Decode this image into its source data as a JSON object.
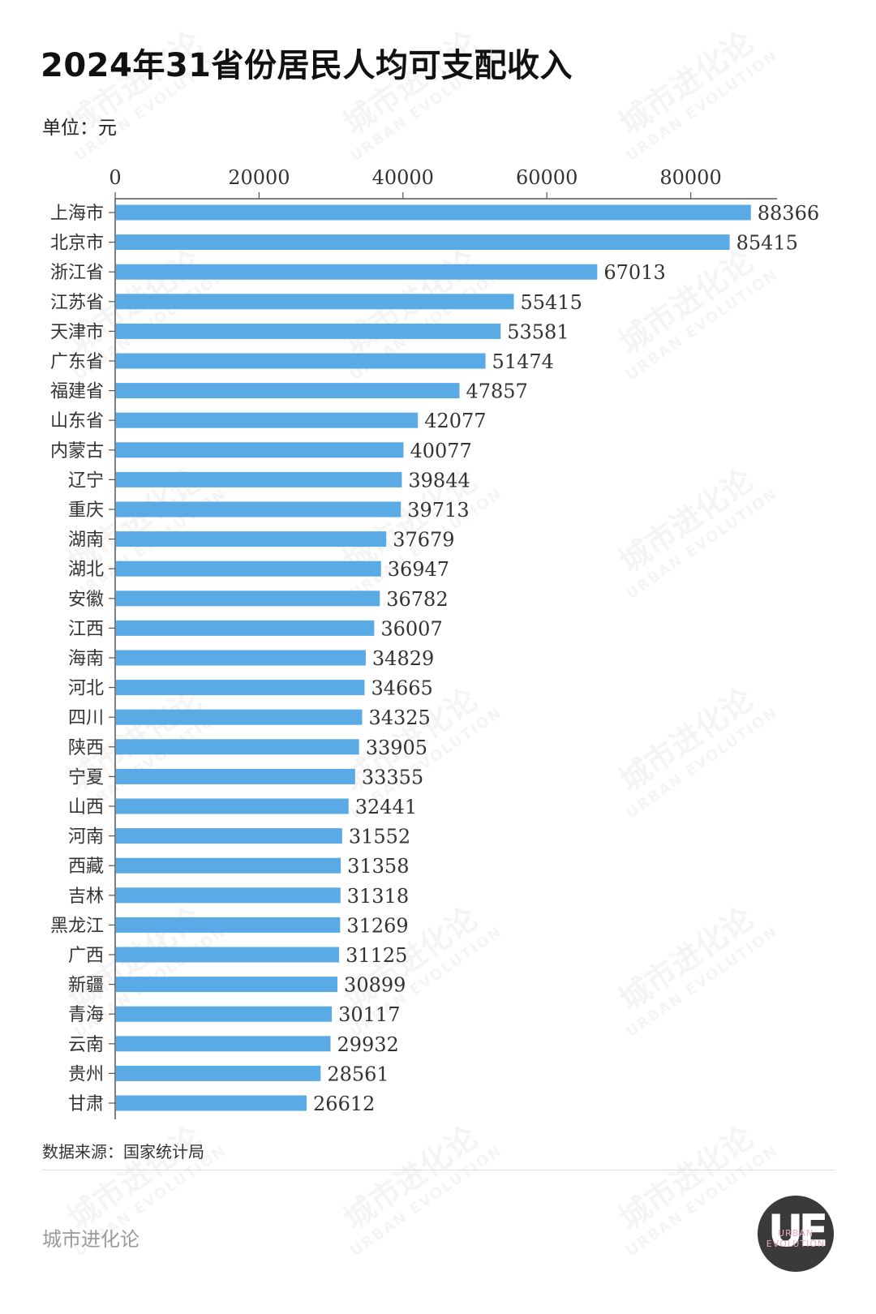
{
  "header": {
    "title": "2024年31省份居民人均可支配收入",
    "unit": "单位：元"
  },
  "footer": {
    "source": "数据来源：国家统计局",
    "brand": "城市进化论",
    "logo_letters": "UE",
    "logo_sub_1": "URBAN",
    "logo_sub_2": "EVOLUTION"
  },
  "watermark": {
    "text_cn": "城市进化论",
    "text_en": "URBAN EVOLUTION"
  },
  "colors": {
    "bar": "#5aaae6",
    "axis": "#555555",
    "text": "#333333"
  },
  "chart_data": {
    "type": "bar",
    "orientation": "horizontal",
    "title": "2024年31省份居民人均可支配收入",
    "xlabel": "",
    "ylabel": "",
    "xlim": [
      0,
      92000
    ],
    "x_ticks": [
      0,
      20000,
      40000,
      60000,
      80000
    ],
    "x_axis_position": "top",
    "grid": false,
    "categories": [
      "上海市",
      "北京市",
      "浙江省",
      "江苏省",
      "天津市",
      "广东省",
      "福建省",
      "山东省",
      "内蒙古",
      "辽宁",
      "重庆",
      "湖南",
      "湖北",
      "安徽",
      "江西",
      "海南",
      "河北",
      "四川",
      "陕西",
      "宁夏",
      "山西",
      "河南",
      "西藏",
      "吉林",
      "黑龙江",
      "广西",
      "新疆",
      "青海",
      "云南",
      "贵州",
      "甘肃"
    ],
    "values": [
      88366,
      85415,
      67013,
      55415,
      53581,
      51474,
      47857,
      42077,
      40077,
      39844,
      39713,
      37679,
      36947,
      36782,
      36007,
      34829,
      34665,
      34325,
      33905,
      33355,
      32441,
      31552,
      31358,
      31318,
      31269,
      31125,
      30899,
      30117,
      29932,
      28561,
      26612
    ]
  }
}
